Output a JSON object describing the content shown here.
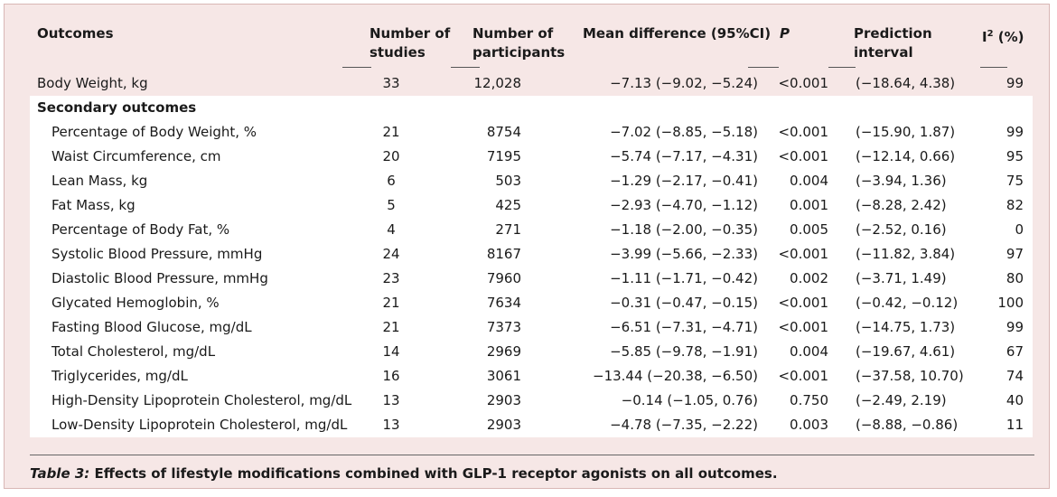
{
  "headers": {
    "outcomes": "Outcomes",
    "studies_l1": "Number of",
    "studies_l2": "studies",
    "participants_l1": "Number of",
    "participants_l2": "participants",
    "mean_diff": "Mean difference (95%CI)",
    "p": "P",
    "pred_l1": "Prediction",
    "pred_l2": "interval",
    "i2_base": "I",
    "i2_sup": "2",
    "i2_unit": " (%)"
  },
  "primary": {
    "outcome": "Body Weight, kg",
    "studies": "33",
    "participants": "12,028",
    "mean_diff": "−7.13 (−9.02, −5.24)",
    "p": "<0.001",
    "pred": "(−18.64, 4.38)",
    "i2": "99"
  },
  "secondary_label": "Secondary outcomes",
  "secondary": [
    {
      "outcome": "Percentage of Body Weight, %",
      "studies": "21",
      "participants": "8754",
      "mean_diff": "−7.02 (−8.85, −5.18)",
      "p": "<0.001",
      "pred": "(−15.90, 1.87)",
      "i2": "99"
    },
    {
      "outcome": "Waist Circumference, cm",
      "studies": "20",
      "participants": "7195",
      "mean_diff": "−5.74 (−7.17, −4.31)",
      "p": "<0.001",
      "pred": "(−12.14, 0.66)",
      "i2": "95"
    },
    {
      "outcome": "Lean Mass, kg",
      "studies": "6",
      "participants": "503",
      "mean_diff": "−1.29 (−2.17, −0.41)",
      "p": "0.004",
      "pred": "(−3.94, 1.36)",
      "i2": "75"
    },
    {
      "outcome": "Fat Mass, kg",
      "studies": "5",
      "participants": "425",
      "mean_diff": "−2.93 (−4.70, −1.12)",
      "p": "0.001",
      "pred": "(−8.28, 2.42)",
      "i2": "82"
    },
    {
      "outcome": "Percentage of Body Fat, %",
      "studies": "4",
      "participants": "271",
      "mean_diff": "−1.18 (−2.00, −0.35)",
      "p": "0.005",
      "pred": "(−2.52, 0.16)",
      "i2": "0"
    },
    {
      "outcome": "Systolic Blood Pressure, mmHg",
      "studies": "24",
      "participants": "8167",
      "mean_diff": "−3.99 (−5.66, −2.33)",
      "p": "<0.001",
      "pred": "(−11.82, 3.84)",
      "i2": "97"
    },
    {
      "outcome": "Diastolic Blood Pressure, mmHg",
      "studies": "23",
      "participants": "7960",
      "mean_diff": "−1.11 (−1.71, −0.42)",
      "p": "0.002",
      "pred": "(−3.71, 1.49)",
      "i2": "80"
    },
    {
      "outcome": "Glycated Hemoglobin, %",
      "studies": "21",
      "participants": "7634",
      "mean_diff": "−0.31 (−0.47, −0.15)",
      "p": "<0.001",
      "pred": "(−0.42, −0.12)",
      "i2": "100"
    },
    {
      "outcome": "Fasting Blood Glucose, mg/dL",
      "studies": "21",
      "participants": "7373",
      "mean_diff": "−6.51 (−7.31, −4.71)",
      "p": "<0.001",
      "pred": "(−14.75, 1.73)",
      "i2": "99"
    },
    {
      "outcome": "Total Cholesterol, mg/dL",
      "studies": "14",
      "participants": "2969",
      "mean_diff": "−5.85 (−9.78, −1.91)",
      "p": "0.004",
      "pred": "(−19.67, 4.61)",
      "i2": "67"
    },
    {
      "outcome": "Triglycerides, mg/dL",
      "studies": "16",
      "participants": "3061",
      "mean_diff": "−13.44 (−20.38, −6.50)",
      "p": "<0.001",
      "pred": "(−37.58, 10.70)",
      "i2": "74"
    },
    {
      "outcome": "High-Density Lipoprotein Cholesterol, mg/dL",
      "studies": "13",
      "participants": "2903",
      "mean_diff": "−0.14 (−1.05, 0.76)",
      "p": "0.750",
      "pred": "(−2.49, 2.19)",
      "i2": "40"
    },
    {
      "outcome": "Low-Density Lipoprotein Cholesterol, mg/dL",
      "studies": "13",
      "participants": "2903",
      "mean_diff": "−4.78 (−7.35, −2.22)",
      "p": "0.003",
      "pred": "(−8.88, −0.86)",
      "i2": "11"
    }
  ],
  "caption": {
    "label": "Table 3:",
    "text": " Effects of lifestyle modifications combined with GLP-1 receptor agonists on all outcomes."
  },
  "colors": {
    "background": "#f6e7e6",
    "row_band": "#ffffff",
    "border": "#d9b7b5"
  }
}
